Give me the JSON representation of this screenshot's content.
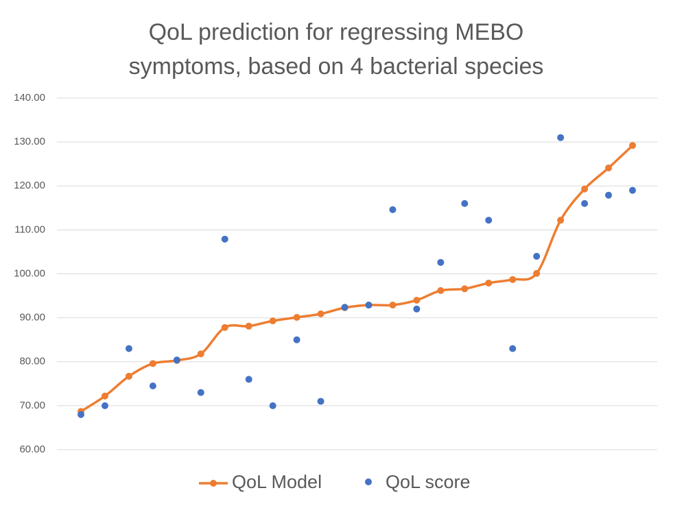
{
  "chart_data": {
    "type": "line",
    "title": "QoL prediction for regressing MEBO symptoms, based on 4 bacterial species",
    "categories": [
      null,
      null,
      null,
      null,
      null,
      null,
      null,
      null,
      null,
      null,
      null,
      null,
      null,
      null,
      null,
      null,
      null,
      null,
      null,
      null,
      null,
      null,
      null,
      null
    ],
    "series": [
      {
        "name": "QoL Model",
        "type": "line",
        "smooth": true,
        "color": "#ed7d31",
        "values": [
          68.7,
          72.2,
          76.7,
          79.6,
          80.3,
          81.8,
          87.8,
          88.1,
          89.3,
          90.1,
          90.9,
          92.3,
          92.9,
          92.9,
          94.0,
          96.2,
          96.6,
          97.9,
          98.7,
          100.1,
          112.2,
          119.3,
          124.1,
          129.2
        ]
      },
      {
        "name": "QoL score",
        "type": "scatter",
        "color": "#4472c4",
        "values": [
          68,
          70,
          83,
          74.5,
          80.4,
          73,
          107.9,
          76,
          70,
          85,
          71,
          92.4,
          92.9,
          114.6,
          92,
          102.6,
          116,
          112.2,
          83,
          104,
          131,
          116,
          117.9,
          119
        ]
      }
    ],
    "ylim": [
      60,
      140
    ],
    "yticks": [
      {
        "value": 60,
        "label": "60.00"
      },
      {
        "value": 70,
        "label": "70.00"
      },
      {
        "value": 80,
        "label": "80.00"
      },
      {
        "value": 90,
        "label": "90.00"
      },
      {
        "value": 100,
        "label": "100.00"
      },
      {
        "value": 110,
        "label": "110.00"
      },
      {
        "value": 120,
        "label": "120.00"
      },
      {
        "value": 130,
        "label": "130.00"
      },
      {
        "value": 140,
        "label": "140.00"
      }
    ],
    "grid": true,
    "legend": "bottom"
  }
}
